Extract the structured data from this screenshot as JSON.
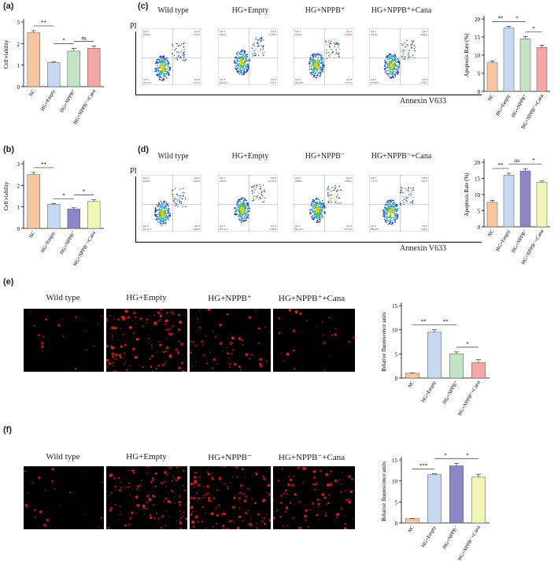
{
  "panels": {
    "a": "(a)",
    "b": "(b)",
    "c": "(c)",
    "d": "(d)",
    "e": "(e)",
    "f": "(f)"
  },
  "colors": {
    "nc": "#f7c59f",
    "hg_empty": "#c5d9f1",
    "nppb": "#c4e3c4",
    "nppb_cana": "#f4a6a6",
    "nppb_minus": "#8b86c6",
    "nppb_minus_cana": "#f3f5b4"
  },
  "flow_c": {
    "y_label": "PI",
    "x_label": "Annexin V633",
    "titles": [
      "Wild type",
      "HG+Empty",
      "HG+NPPB⁺",
      "HG+NPPB⁺+Cana"
    ],
    "quadrants": [
      {
        "q1": "Q3-1",
        "q1v": "0.83%",
        "q2": "Q3-2",
        "q2v": "4.51%",
        "q3": "Q3-3",
        "q3v": "92.11%",
        "q4": "Q3-4",
        "q4v": "2.75%"
      },
      {
        "q1": "Q3-1",
        "q1v": "0.63%",
        "q2": "Q3-2",
        "q2v": "11.78%",
        "q3": "Q3-3",
        "q3v": "82.44%",
        "q4": "Q3-4",
        "q4v": "5.33%"
      },
      {
        "q1": "Q3-1",
        "q1v": "0.26%",
        "q2": "Q3-2",
        "q2v": "6.18%",
        "q3": "Q3-3",
        "q3v": "84.29%",
        "q4": "Q3-4",
        "q4v": "3.74%"
      },
      {
        "q1": "Q3-1",
        "q1v": "0.53%",
        "q2": "Q3-2",
        "q2v": "8.62%",
        "q3": "Q3-3",
        "q3v": "87.09%",
        "q4": "Q3-4",
        "q4v": "3.76%"
      }
    ]
  },
  "flow_d": {
    "y_label": "PI",
    "x_label": "Annexin V633",
    "titles": [
      "Wild type",
      "HG+Empty",
      "HG+NPPB⁻",
      "HG+NPPB⁻+Cana"
    ],
    "quadrants": [
      {
        "q1": "Q3-1",
        "q1v": "0.45%",
        "q2": "Q3-2",
        "q2v": "4.16%",
        "q3": "Q3-3",
        "q3v": "92.41%",
        "q4": "Q3-4",
        "q4v": "2.98%"
      },
      {
        "q1": "Q3-1",
        "q1v": "0.63%",
        "q2": "Q3-2",
        "q2v": "10.12%",
        "q3": "Q3-3",
        "q3v": "83.11%",
        "q4": "Q3-4",
        "q4v": "5.36%"
      },
      {
        "q1": "Q3-1",
        "q1v": "0.88%",
        "q2": "Q3-2",
        "q2v": "8.59%",
        "q3": "Q3-3",
        "q3v": "82.22%",
        "q4": "Q3-4",
        "q4v": "8.15%"
      },
      {
        "q1": "Q3-1",
        "q1v": "1.73%",
        "q2": "Q3-2",
        "q2v": "7.91%",
        "q3": "Q3-3",
        "q3v": "88.02%",
        "q4": "Q3-4",
        "q4v": "3.34%"
      }
    ]
  },
  "micro_e": {
    "titles": [
      "Wild type",
      "HG+Empty",
      "HG+NPPB⁺",
      "HG+NPPB⁺+Cana"
    ]
  },
  "micro_f": {
    "titles": [
      "Wild type",
      "HG+Empty",
      "HG+NPPB⁻",
      "HG+NPPB⁻+Cana"
    ]
  },
  "chart_data": [
    {
      "id": "a",
      "type": "bar",
      "categories": [
        "NC",
        "HG+Empty",
        "HG+NPPB⁺",
        "HG+NPPB⁺+Cana"
      ],
      "values": [
        2.5,
        1.12,
        1.65,
        1.78
      ],
      "errors": [
        0.1,
        0.04,
        0.12,
        0.1
      ],
      "colors": [
        "#f7c59f",
        "#c5d9f1",
        "#c4e3c4",
        "#f4a6a6"
      ],
      "ylabel": "Cell viability",
      "ylim": [
        0,
        3
      ],
      "yticks": [
        0,
        1,
        2,
        3
      ],
      "sig": [
        {
          "from": 0,
          "to": 1,
          "label": "**"
        },
        {
          "from": 1,
          "to": 2,
          "label": "*"
        },
        {
          "from": 2,
          "to": 3,
          "label": "ns"
        }
      ]
    },
    {
      "id": "b",
      "type": "bar",
      "categories": [
        "NC",
        "HG+Empty",
        "HG+NPPB⁻",
        "HG+NPPB⁻+Cana"
      ],
      "values": [
        2.5,
        1.12,
        0.9,
        1.25
      ],
      "errors": [
        0.1,
        0.04,
        0.06,
        0.08
      ],
      "colors": [
        "#f7c59f",
        "#c5d9f1",
        "#8b86c6",
        "#f3f5b4"
      ],
      "ylabel": "Cell viability",
      "ylim": [
        0,
        3
      ],
      "yticks": [
        0,
        1,
        2,
        3
      ],
      "sig": [
        {
          "from": 0,
          "to": 1,
          "label": "**"
        },
        {
          "from": 1,
          "to": 2,
          "label": "*"
        },
        {
          "from": 2,
          "to": 3,
          "label": "*"
        }
      ]
    },
    {
      "id": "c",
      "type": "bar",
      "categories": [
        "NC",
        "HG+Empty",
        "HG+NPPB⁺",
        "HG+NPPB⁺+Cana"
      ],
      "values": [
        7.9,
        17.5,
        14.5,
        12.1
      ],
      "errors": [
        0.5,
        0.4,
        0.6,
        0.6
      ],
      "colors": [
        "#f7c59f",
        "#c5d9f1",
        "#c4e3c4",
        "#f4a6a6"
      ],
      "ylabel": "Apoptosis Rate (%)",
      "ylim": [
        0,
        20
      ],
      "yticks": [
        0,
        5,
        10,
        15,
        20
      ],
      "sig": [
        {
          "from": 0,
          "to": 1,
          "label": "**"
        },
        {
          "from": 1,
          "to": 2,
          "label": "*"
        },
        {
          "from": 2,
          "to": 3,
          "label": "*"
        }
      ]
    },
    {
      "id": "d",
      "type": "bar",
      "categories": [
        "NC",
        "HG+Empty",
        "HG+NPPB⁻",
        "HG+NPPB⁻+Cana"
      ],
      "values": [
        7.6,
        16.0,
        17.3,
        13.8
      ],
      "errors": [
        0.6,
        0.6,
        0.7,
        0.4
      ],
      "colors": [
        "#f7c59f",
        "#c5d9f1",
        "#8b86c6",
        "#f3f5b4"
      ],
      "ylabel": "Apoptosis Rate (%)",
      "ylim": [
        0,
        20
      ],
      "yticks": [
        0,
        5,
        10,
        15,
        20
      ],
      "sig": [
        {
          "from": 0,
          "to": 1,
          "label": "**"
        },
        {
          "from": 1,
          "to": 2,
          "label": "ns"
        },
        {
          "from": 2,
          "to": 3,
          "label": "*"
        }
      ]
    },
    {
      "id": "e",
      "type": "bar",
      "categories": [
        "NC",
        "HG+Empty",
        "HG+NPPB⁺",
        "HG+NPPB⁺+Cana"
      ],
      "values": [
        1.0,
        9.5,
        5.0,
        3.2
      ],
      "errors": [
        0.05,
        0.5,
        0.4,
        0.6
      ],
      "colors": [
        "#f7c59f",
        "#c5d9f1",
        "#c4e3c4",
        "#f4a6a6"
      ],
      "ylabel": "Relative fluorescence units",
      "ylim": [
        0,
        15
      ],
      "yticks": [
        0,
        5,
        10,
        15
      ],
      "sig": [
        {
          "from": 0,
          "to": 1,
          "label": "**"
        },
        {
          "from": 1,
          "to": 2,
          "label": "**"
        },
        {
          "from": 2,
          "to": 3,
          "label": "*"
        }
      ]
    },
    {
      "id": "f",
      "type": "bar",
      "categories": [
        "NC",
        "HG+Empty",
        "HG+NPPB⁻",
        "HG+NPPB⁻+Cana"
      ],
      "values": [
        1.0,
        11.5,
        13.6,
        10.9
      ],
      "errors": [
        0.05,
        0.2,
        0.6,
        0.7
      ],
      "colors": [
        "#f7c59f",
        "#c5d9f1",
        "#8b86c6",
        "#f3f5b4"
      ],
      "ylabel": "Relative fluorescence units",
      "ylim": [
        0,
        15
      ],
      "yticks": [
        0,
        5,
        10,
        15
      ],
      "sig": [
        {
          "from": 0,
          "to": 1,
          "label": "***"
        },
        {
          "from": 1,
          "to": 2,
          "label": "*"
        },
        {
          "from": 2,
          "to": 3,
          "label": "*"
        }
      ]
    }
  ]
}
